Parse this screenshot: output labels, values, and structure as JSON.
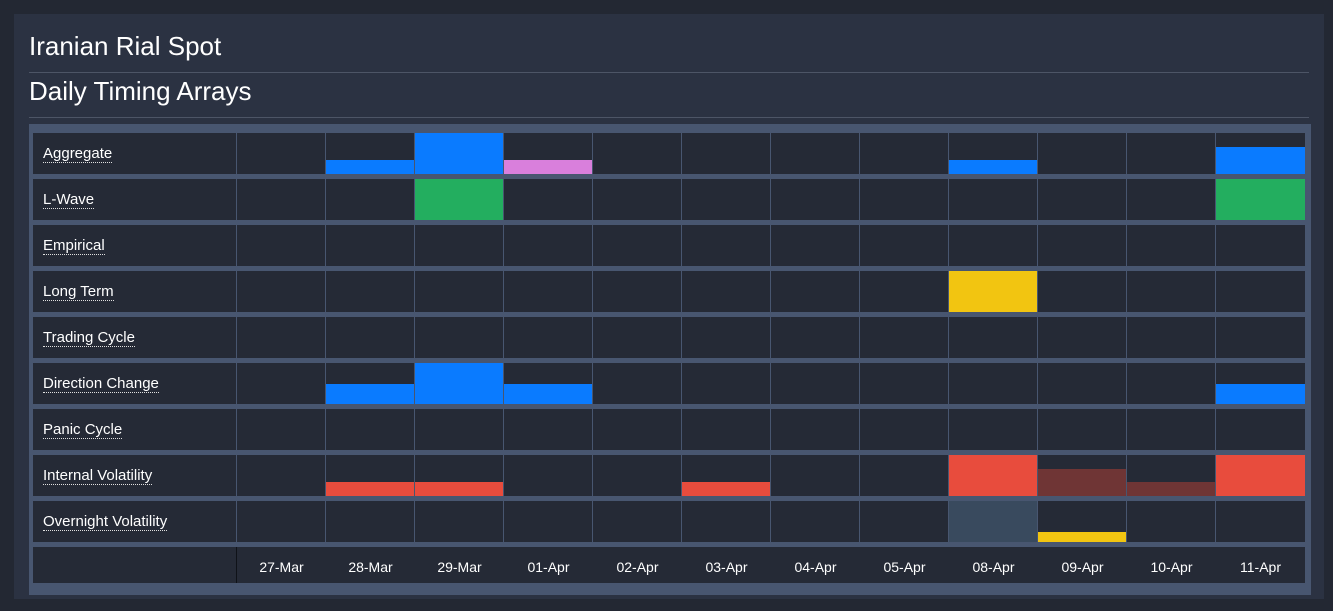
{
  "header": {
    "title": "Iranian Rial Spot",
    "subtitle": "Daily Timing Arrays"
  },
  "colors": {
    "blue": "#0a7bff",
    "green": "#23ae5f",
    "pink": "#d97fdc",
    "yellow": "#f2c511",
    "red": "#e84c3d",
    "dark_red": "#6f3535",
    "slate": "#394a5e"
  },
  "dates": [
    "27-Mar",
    "28-Mar",
    "29-Mar",
    "01-Apr",
    "02-Apr",
    "03-Apr",
    "04-Apr",
    "05-Apr",
    "08-Apr",
    "09-Apr",
    "10-Apr",
    "11-Apr"
  ],
  "rows": [
    {
      "label": "Aggregate",
      "cells": [
        null,
        {
          "level": 0.33,
          "color": "#0a7bff"
        },
        {
          "level": 1.0,
          "color": "#0a7bff"
        },
        {
          "level": 0.33,
          "color": "#d97fdc"
        },
        null,
        null,
        null,
        null,
        {
          "level": 0.33,
          "color": "#0a7bff"
        },
        null,
        null,
        {
          "level": 0.67,
          "color": "#0a7bff"
        }
      ]
    },
    {
      "label": "L-Wave",
      "cells": [
        null,
        null,
        {
          "level": 1.0,
          "color": "#23ae5f"
        },
        null,
        null,
        null,
        null,
        null,
        null,
        null,
        null,
        {
          "level": 1.0,
          "color": "#23ae5f"
        }
      ]
    },
    {
      "label": "Empirical",
      "cells": [
        null,
        null,
        null,
        null,
        null,
        null,
        null,
        null,
        null,
        null,
        null,
        null
      ]
    },
    {
      "label": "Long Term",
      "cells": [
        null,
        null,
        null,
        null,
        null,
        null,
        null,
        null,
        {
          "level": 1.0,
          "color": "#f2c511"
        },
        null,
        null,
        null
      ]
    },
    {
      "label": "Trading Cycle",
      "cells": [
        null,
        null,
        null,
        null,
        null,
        null,
        null,
        null,
        null,
        null,
        null,
        null
      ]
    },
    {
      "label": "Direction Change",
      "cells": [
        null,
        {
          "level": 0.5,
          "color": "#0a7bff"
        },
        {
          "level": 1.0,
          "color": "#0a7bff"
        },
        {
          "level": 0.5,
          "color": "#0a7bff"
        },
        null,
        null,
        null,
        null,
        null,
        null,
        null,
        {
          "level": 0.5,
          "color": "#0a7bff"
        }
      ]
    },
    {
      "label": "Panic Cycle",
      "cells": [
        null,
        null,
        null,
        null,
        null,
        null,
        null,
        null,
        null,
        null,
        null,
        null
      ]
    },
    {
      "label": "Internal Volatility",
      "cells": [
        null,
        {
          "level": 0.33,
          "color": "#e84c3d"
        },
        {
          "level": 0.33,
          "color": "#e84c3d"
        },
        null,
        null,
        {
          "level": 0.33,
          "color": "#e84c3d"
        },
        null,
        null,
        {
          "level": 1.0,
          "color": "#e84c3d"
        },
        {
          "level": 0.67,
          "color": "#6f3535"
        },
        {
          "level": 0.33,
          "color": "#6f3535"
        },
        {
          "level": 1.0,
          "color": "#e84c3d"
        }
      ]
    },
    {
      "label": "Overnight Volatility",
      "cells": [
        null,
        null,
        null,
        null,
        null,
        null,
        null,
        null,
        {
          "level": 1.0,
          "color": "#394a5e"
        },
        {
          "level": 0.25,
          "color": "#f2c511"
        },
        null,
        null
      ]
    }
  ]
}
